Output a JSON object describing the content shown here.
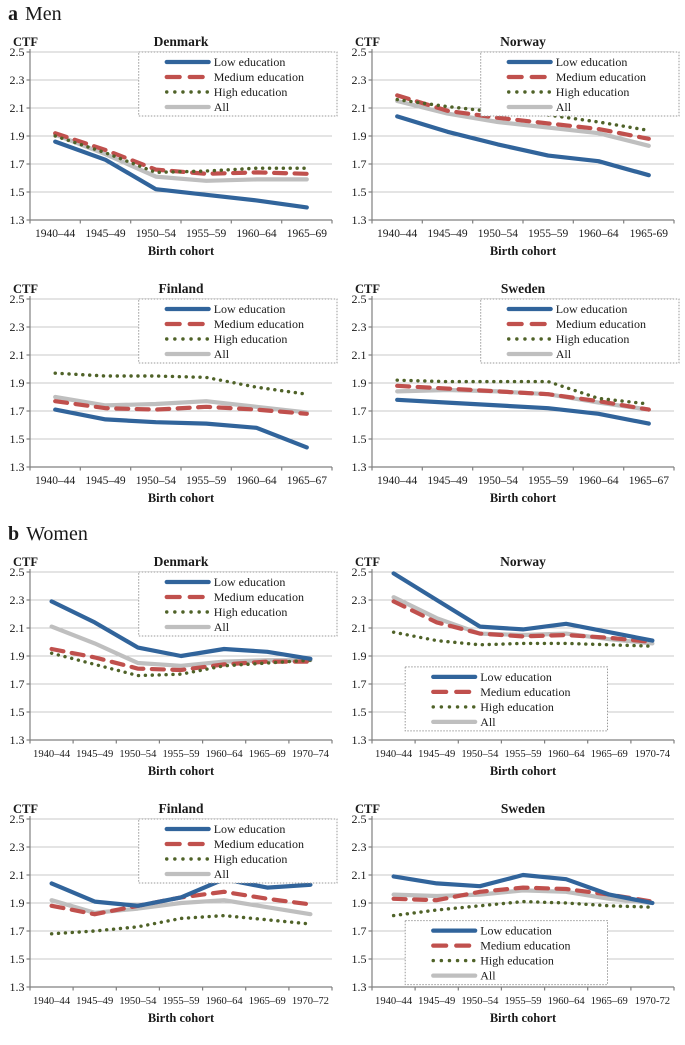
{
  "page": {
    "panel_a_letter": "a",
    "panel_a_title": "Men",
    "panel_b_letter": "b",
    "panel_b_title": "Women"
  },
  "colors": {
    "low": "#31649B",
    "medium": "#C0504D",
    "high": "#4F6228",
    "all": "#BFBFBF",
    "grid": "#C8C8C8",
    "axis": "#808080",
    "legend_border": "#9A9A9A",
    "text": "#1a1a1a"
  },
  "legend_labels": [
    "Low education",
    "Medium education",
    "High education",
    "All"
  ],
  "chart_data": [
    {
      "id": "men-denmark",
      "type": "line",
      "title": "Denmark",
      "ylabel": "CTF",
      "xlabel": "Birth cohort",
      "ylim": [
        1.3,
        2.5
      ],
      "ytick_step": 0.2,
      "grid": true,
      "legend_position": "top-right",
      "categories": [
        "1940–44",
        "1945–49",
        "1950–54",
        "1955–59",
        "1960–64",
        "1965–69"
      ],
      "series": [
        {
          "name": "Low education",
          "color": "#31649B",
          "style": "solid",
          "values": [
            1.86,
            1.73,
            1.52,
            1.48,
            1.44,
            1.39
          ]
        },
        {
          "name": "Medium education",
          "color": "#C0504D",
          "style": "dashed",
          "values": [
            1.92,
            1.8,
            1.66,
            1.63,
            1.64,
            1.63
          ]
        },
        {
          "name": "High education",
          "color": "#4F6228",
          "style": "dotted",
          "values": [
            1.9,
            1.78,
            1.64,
            1.65,
            1.67,
            1.67
          ]
        },
        {
          "name": "All",
          "color": "#BFBFBF",
          "style": "solid",
          "values": [
            1.91,
            1.77,
            1.61,
            1.58,
            1.59,
            1.59
          ]
        }
      ]
    },
    {
      "id": "men-norway",
      "type": "line",
      "title": "Norway",
      "ylabel": "CTF",
      "xlabel": "Birth cohort",
      "ylim": [
        1.3,
        2.5
      ],
      "ytick_step": 0.2,
      "grid": true,
      "legend_position": "top-right",
      "categories": [
        "1940–44",
        "1945–49",
        "1950–54",
        "1955–59",
        "1960–64",
        "1965-69"
      ],
      "series": [
        {
          "name": "Low education",
          "color": "#31649B",
          "style": "solid",
          "values": [
            2.04,
            1.93,
            1.84,
            1.76,
            1.72,
            1.62
          ]
        },
        {
          "name": "Medium education",
          "color": "#C0504D",
          "style": "dashed",
          "values": [
            2.19,
            2.08,
            2.03,
            1.99,
            1.95,
            1.88
          ]
        },
        {
          "name": "High education",
          "color": "#4F6228",
          "style": "dotted",
          "values": [
            2.16,
            2.11,
            2.07,
            2.05,
            2.0,
            1.94
          ]
        },
        {
          "name": "All",
          "color": "#BFBFBF",
          "style": "solid",
          "values": [
            2.15,
            2.06,
            2.0,
            1.96,
            1.92,
            1.83
          ]
        }
      ]
    },
    {
      "id": "men-finland",
      "type": "line",
      "title": "Finland",
      "ylabel": "CTF",
      "xlabel": "Birth cohort",
      "ylim": [
        1.3,
        2.5
      ],
      "ytick_step": 0.2,
      "grid": true,
      "legend_position": "top-right",
      "categories": [
        "1940–44",
        "1945–49",
        "1950–54",
        "1955–59",
        "1960–64",
        "1965–67"
      ],
      "series": [
        {
          "name": "Low education",
          "color": "#31649B",
          "style": "solid",
          "values": [
            1.71,
            1.64,
            1.62,
            1.61,
            1.58,
            1.44
          ]
        },
        {
          "name": "Medium education",
          "color": "#C0504D",
          "style": "dashed",
          "values": [
            1.77,
            1.72,
            1.71,
            1.73,
            1.71,
            1.68
          ]
        },
        {
          "name": "High education",
          "color": "#4F6228",
          "style": "dotted",
          "values": [
            1.97,
            1.95,
            1.95,
            1.94,
            1.87,
            1.82
          ]
        },
        {
          "name": "All",
          "color": "#BFBFBF",
          "style": "solid",
          "values": [
            1.8,
            1.74,
            1.75,
            1.77,
            1.73,
            1.69
          ]
        }
      ]
    },
    {
      "id": "men-sweden",
      "type": "line",
      "title": "Sweden",
      "ylabel": "CTF",
      "xlabel": "Birth cohort",
      "ylim": [
        1.3,
        2.5
      ],
      "ytick_step": 0.2,
      "grid": true,
      "legend_position": "top-right",
      "categories": [
        "1940–44",
        "1945–49",
        "1950–54",
        "1955–59",
        "1960–64",
        "1965–67"
      ],
      "series": [
        {
          "name": "Low education",
          "color": "#31649B",
          "style": "solid",
          "values": [
            1.78,
            1.76,
            1.74,
            1.72,
            1.68,
            1.61
          ]
        },
        {
          "name": "Medium education",
          "color": "#C0504D",
          "style": "dashed",
          "values": [
            1.88,
            1.86,
            1.84,
            1.82,
            1.77,
            1.71
          ]
        },
        {
          "name": "High education",
          "color": "#4F6228",
          "style": "dotted",
          "values": [
            1.92,
            1.91,
            1.91,
            1.91,
            1.79,
            1.75
          ]
        },
        {
          "name": "All",
          "color": "#BFBFBF",
          "style": "solid",
          "values": [
            1.84,
            1.85,
            1.84,
            1.82,
            1.76,
            1.71
          ]
        }
      ]
    },
    {
      "id": "women-denmark",
      "type": "line",
      "title": "Denmark",
      "ylabel": "CTF",
      "xlabel": "Birth cohort",
      "ylim": [
        1.3,
        2.5
      ],
      "ytick_step": 0.2,
      "grid": true,
      "legend_position": "top-right",
      "categories": [
        "1940–44",
        "1945–49",
        "1950–54",
        "1955–59",
        "1960–64",
        "1965–69",
        "1970–74"
      ],
      "series": [
        {
          "name": "Low education",
          "color": "#31649B",
          "style": "solid",
          "values": [
            2.29,
            2.14,
            1.96,
            1.9,
            1.95,
            1.93,
            1.88
          ]
        },
        {
          "name": "Medium education",
          "color": "#C0504D",
          "style": "dashed",
          "values": [
            1.95,
            1.89,
            1.81,
            1.8,
            1.84,
            1.86,
            1.86
          ]
        },
        {
          "name": "High education",
          "color": "#4F6228",
          "style": "dotted",
          "values": [
            1.92,
            1.84,
            1.76,
            1.77,
            1.83,
            1.85,
            1.87
          ]
        },
        {
          "name": "All",
          "color": "#BFBFBF",
          "style": "solid",
          "values": [
            2.11,
            1.99,
            1.85,
            1.83,
            1.86,
            1.87,
            1.87
          ]
        }
      ]
    },
    {
      "id": "women-norway",
      "type": "line",
      "title": "Norway",
      "ylabel": "CTF",
      "xlabel": "Birth cohort",
      "ylim": [
        1.3,
        2.5
      ],
      "ytick_step": 0.2,
      "grid": true,
      "legend_position": "bottom-center",
      "legend_y_frac": 0.565,
      "categories": [
        "1940–44",
        "1945–49",
        "1950–54",
        "1955–59",
        "1960–64",
        "1965–69",
        "1970-74"
      ],
      "series": [
        {
          "name": "Low education",
          "color": "#31649B",
          "style": "solid",
          "values": [
            2.49,
            2.3,
            2.11,
            2.09,
            2.13,
            2.07,
            2.01
          ]
        },
        {
          "name": "Medium education",
          "color": "#C0504D",
          "style": "dashed",
          "values": [
            2.29,
            2.14,
            2.06,
            2.04,
            2.05,
            2.03,
            2.0
          ]
        },
        {
          "name": "High education",
          "color": "#4F6228",
          "style": "dotted",
          "values": [
            2.07,
            2.01,
            1.98,
            1.99,
            1.99,
            1.98,
            1.97
          ]
        },
        {
          "name": "All",
          "color": "#BFBFBF",
          "style": "solid",
          "values": [
            2.32,
            2.17,
            2.06,
            2.05,
            2.06,
            2.02,
            1.99
          ]
        }
      ]
    },
    {
      "id": "women-finland",
      "type": "line",
      "title": "Finland",
      "ylabel": "CTF",
      "xlabel": "Birth cohort",
      "ylim": [
        1.3,
        2.5
      ],
      "ytick_step": 0.2,
      "grid": true,
      "legend_position": "top-right",
      "categories": [
        "1940–44",
        "1945–49",
        "1950–54",
        "1955–59",
        "1960–64",
        "1965–69",
        "1970–72"
      ],
      "series": [
        {
          "name": "Low education",
          "color": "#31649B",
          "style": "solid",
          "values": [
            2.04,
            1.91,
            1.88,
            1.94,
            2.07,
            2.01,
            2.03
          ]
        },
        {
          "name": "Medium education",
          "color": "#C0504D",
          "style": "dashed",
          "values": [
            1.88,
            1.82,
            1.88,
            1.94,
            1.98,
            1.93,
            1.89
          ]
        },
        {
          "name": "High education",
          "color": "#4F6228",
          "style": "dotted",
          "values": [
            1.68,
            1.7,
            1.73,
            1.79,
            1.81,
            1.78,
            1.75
          ]
        },
        {
          "name": "All",
          "color": "#BFBFBF",
          "style": "solid",
          "values": [
            1.92,
            1.83,
            1.86,
            1.9,
            1.92,
            1.87,
            1.82
          ]
        }
      ]
    },
    {
      "id": "women-sweden",
      "type": "line",
      "title": "Sweden",
      "ylabel": "CTF",
      "xlabel": "Birth cohort",
      "ylim": [
        1.3,
        2.5
      ],
      "ytick_step": 0.2,
      "grid": true,
      "legend_position": "bottom-center",
      "legend_y_frac": 0.605,
      "categories": [
        "1940–44",
        "1945–49",
        "1950–54",
        "1955–59",
        "1960–64",
        "1965–69",
        "1970-72"
      ],
      "series": [
        {
          "name": "Low education",
          "color": "#31649B",
          "style": "solid",
          "values": [
            2.09,
            2.04,
            2.02,
            2.1,
            2.07,
            1.96,
            1.9
          ]
        },
        {
          "name": "Medium education",
          "color": "#C0504D",
          "style": "dashed",
          "values": [
            1.93,
            1.92,
            1.98,
            2.01,
            2.0,
            1.96,
            1.91
          ]
        },
        {
          "name": "High education",
          "color": "#4F6228",
          "style": "dotted",
          "values": [
            1.81,
            1.85,
            1.88,
            1.91,
            1.9,
            1.88,
            1.87
          ]
        },
        {
          "name": "All",
          "color": "#BFBFBF",
          "style": "solid",
          "values": [
            1.96,
            1.95,
            1.96,
            1.99,
            1.98,
            1.93,
            1.9
          ]
        }
      ]
    }
  ]
}
